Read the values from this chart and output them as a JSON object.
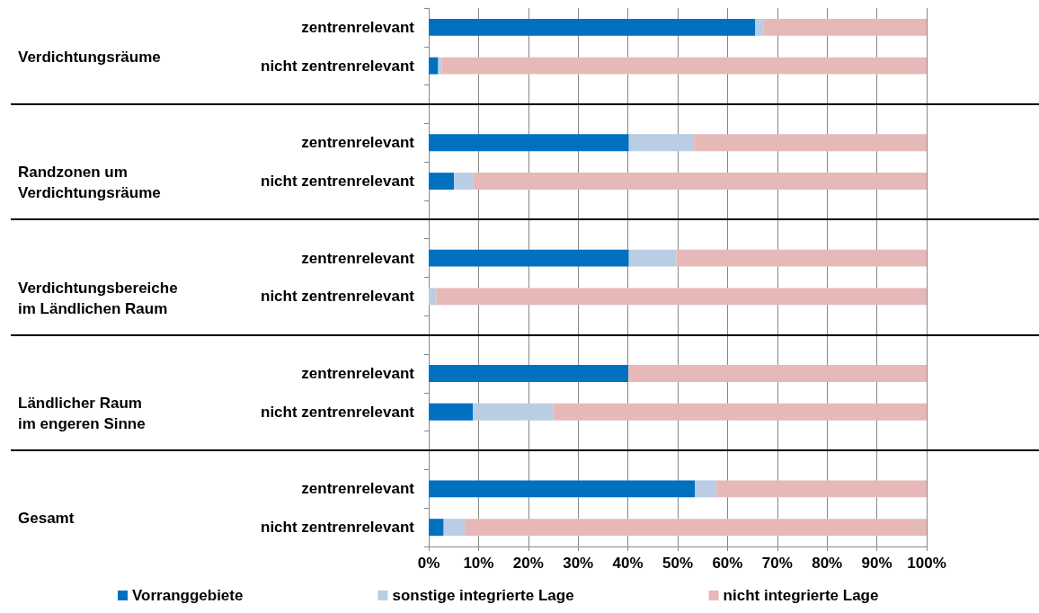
{
  "chart_data": {
    "type": "bar",
    "orientation": "horizontal",
    "stacked": true,
    "categories": [
      "zentrenrelevant",
      "nicht zentrenrelevant",
      null,
      "zentrenrelevant",
      "nicht zentrenrelevant",
      null,
      "zentrenrelevant",
      "nicht zentrenrelevant",
      null,
      "zentrenrelevant",
      "nicht zentrenrelevant",
      null,
      "zentrenrelevant",
      "nicht zentrenrelevant"
    ],
    "series": [
      {
        "name": "Vorranggebiete",
        "color": "#0070c0",
        "values": [
          65.6,
          1.9,
          null,
          40.2,
          5.1,
          null,
          40.2,
          0,
          null,
          40.1,
          8.9,
          null,
          53.5,
          3.0
        ]
      },
      {
        "name": "sonstige integrierte Lage",
        "color": "#b9cde5",
        "values": [
          1.7,
          0.7,
          null,
          13.1,
          3.9,
          null,
          9.5,
          1.5,
          null,
          0,
          16.1,
          null,
          4.3,
          4.2
        ]
      },
      {
        "name": "nicht integrierte Lage",
        "color": "#e6b9b8",
        "values": [
          32.7,
          97.4,
          null,
          46.7,
          91.0,
          null,
          50.3,
          98.5,
          null,
          59.9,
          75.0,
          null,
          42.2,
          92.8
        ]
      }
    ],
    "xlim": [
      0,
      100
    ],
    "xticks": [
      {
        "value": 0,
        "label": "0%"
      },
      {
        "value": 10,
        "label": "10%"
      },
      {
        "value": 20,
        "label": "20%"
      },
      {
        "value": 30,
        "label": "30%"
      },
      {
        "value": 40,
        "label": "40%"
      },
      {
        "value": 50,
        "label": "50%"
      },
      {
        "value": 60,
        "label": "60%"
      },
      {
        "value": 70,
        "label": "70%"
      },
      {
        "value": 80,
        "label": "80%"
      },
      {
        "value": 90,
        "label": "90%"
      },
      {
        "value": 100,
        "label": "100%"
      }
    ],
    "annotations": [
      "Verdichtungsräume",
      "Randzonen um\nVerdichtungsräume",
      "Verdichtungsbereiche\nim Ländlichen Raum",
      "Ländlicher Raum\nim engeren Sinne",
      "Gesamt"
    ],
    "grid": "x",
    "legend": "bottom",
    "marker": "square"
  }
}
